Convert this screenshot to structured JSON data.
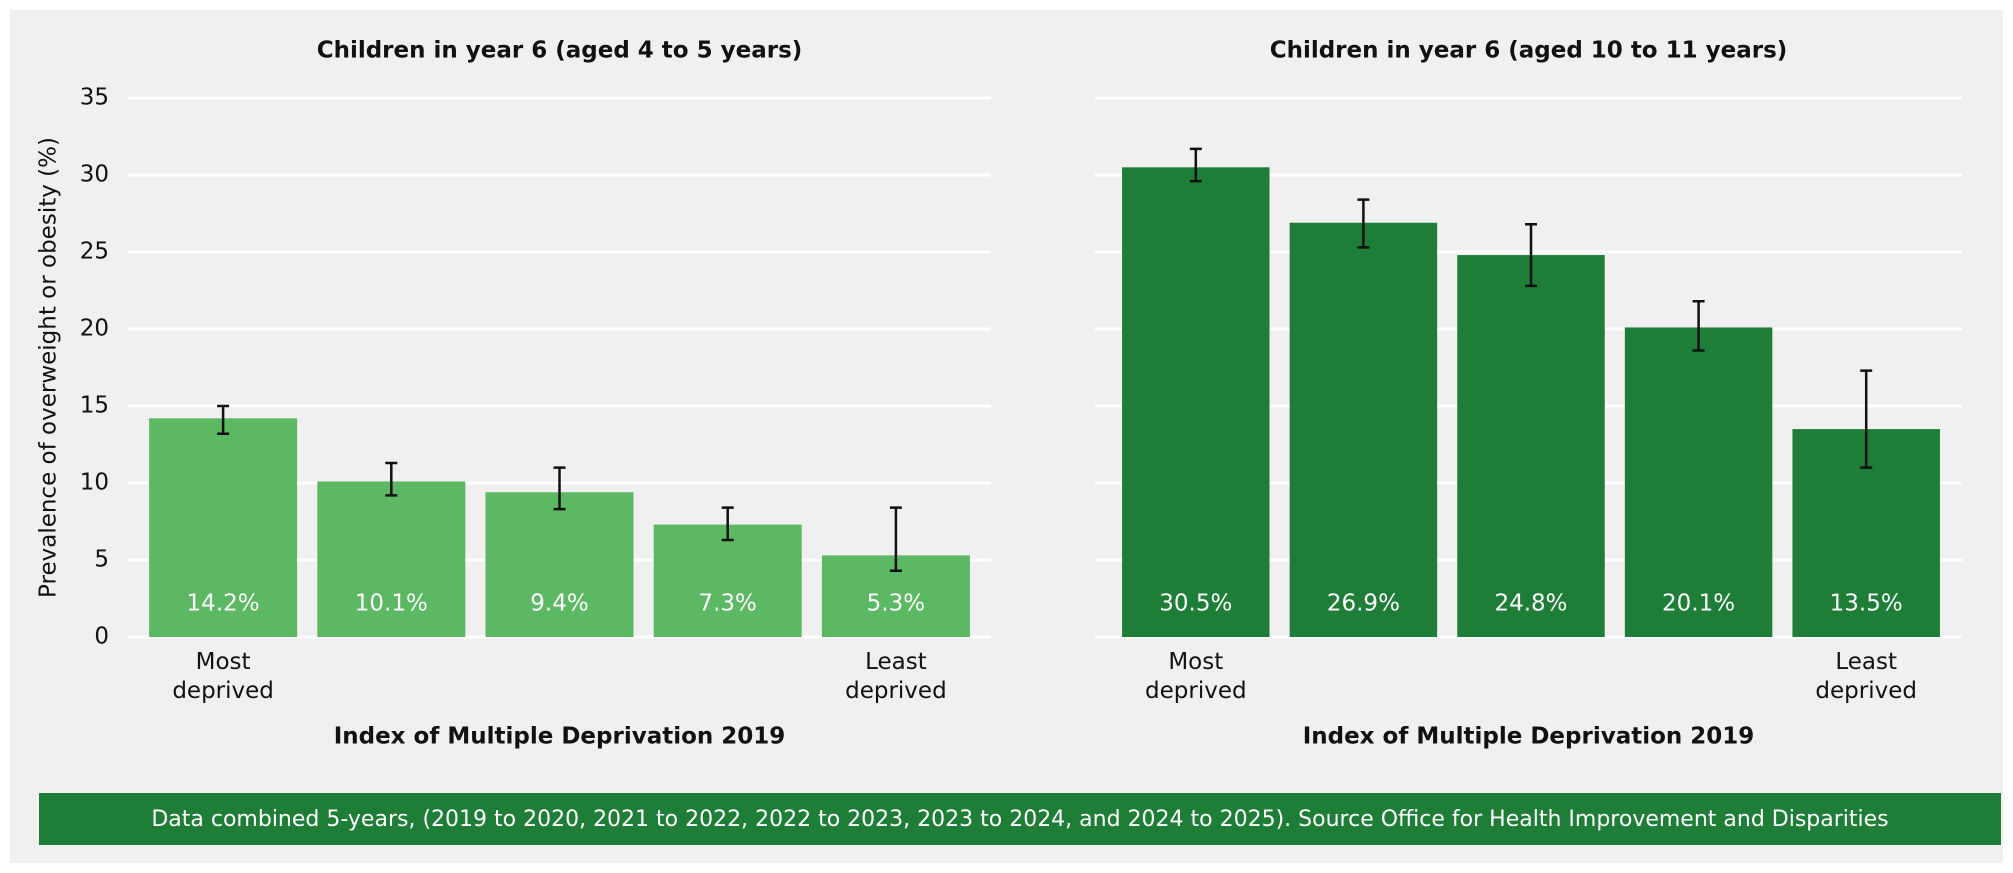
{
  "chart_data": [
    {
      "type": "bar",
      "title": "Children in year 6 (aged 4 to 5 years)",
      "ylabel": "Prevalence of overweight or obesity (%)",
      "xlabel": "Index of Multiple Deprivation 2019",
      "categories": [
        "Most deprived",
        null,
        null,
        null,
        "Least deprived"
      ],
      "values": [
        14.2,
        10.1,
        9.4,
        7.3,
        5.3
      ],
      "value_labels": [
        "14.2%",
        "10.1%",
        "9.4%",
        "7.3%",
        "5.3%"
      ],
      "error_low": [
        13.2,
        9.2,
        8.3,
        6.3,
        4.3
      ],
      "error_high": [
        15.0,
        11.3,
        11.0,
        8.4,
        8.4
      ],
      "color": "#5cb862",
      "ylim": [
        0,
        35
      ],
      "yticks": [
        0,
        5,
        10,
        15,
        20,
        25,
        30,
        35
      ],
      "grid": true
    },
    {
      "type": "bar",
      "title": "Children in year 6 (aged 10 to 11 years)",
      "xlabel": "Index of Multiple Deprivation 2019",
      "categories": [
        "Most deprived",
        null,
        null,
        null,
        "Least deprived"
      ],
      "values": [
        30.5,
        26.9,
        24.8,
        20.1,
        13.5
      ],
      "value_labels": [
        "30.5%",
        "26.9%",
        "24.8%",
        "20.1%",
        "13.5%"
      ],
      "error_low": [
        29.6,
        25.3,
        22.8,
        18.6,
        11.0
      ],
      "error_high": [
        31.7,
        28.4,
        26.8,
        21.8,
        17.3
      ],
      "color": "#1e7d36",
      "ylim": [
        0,
        35
      ],
      "yticks": [
        0,
        5,
        10,
        15,
        20,
        25,
        30,
        35
      ],
      "grid": true
    }
  ],
  "footer": "Data combined 5-years, (2019 to 2020, 2021 to 2022, 2022 to 2023, 2023 to 2024, and 2024 to 2025). Source Office for Health Improvement and Disparities"
}
